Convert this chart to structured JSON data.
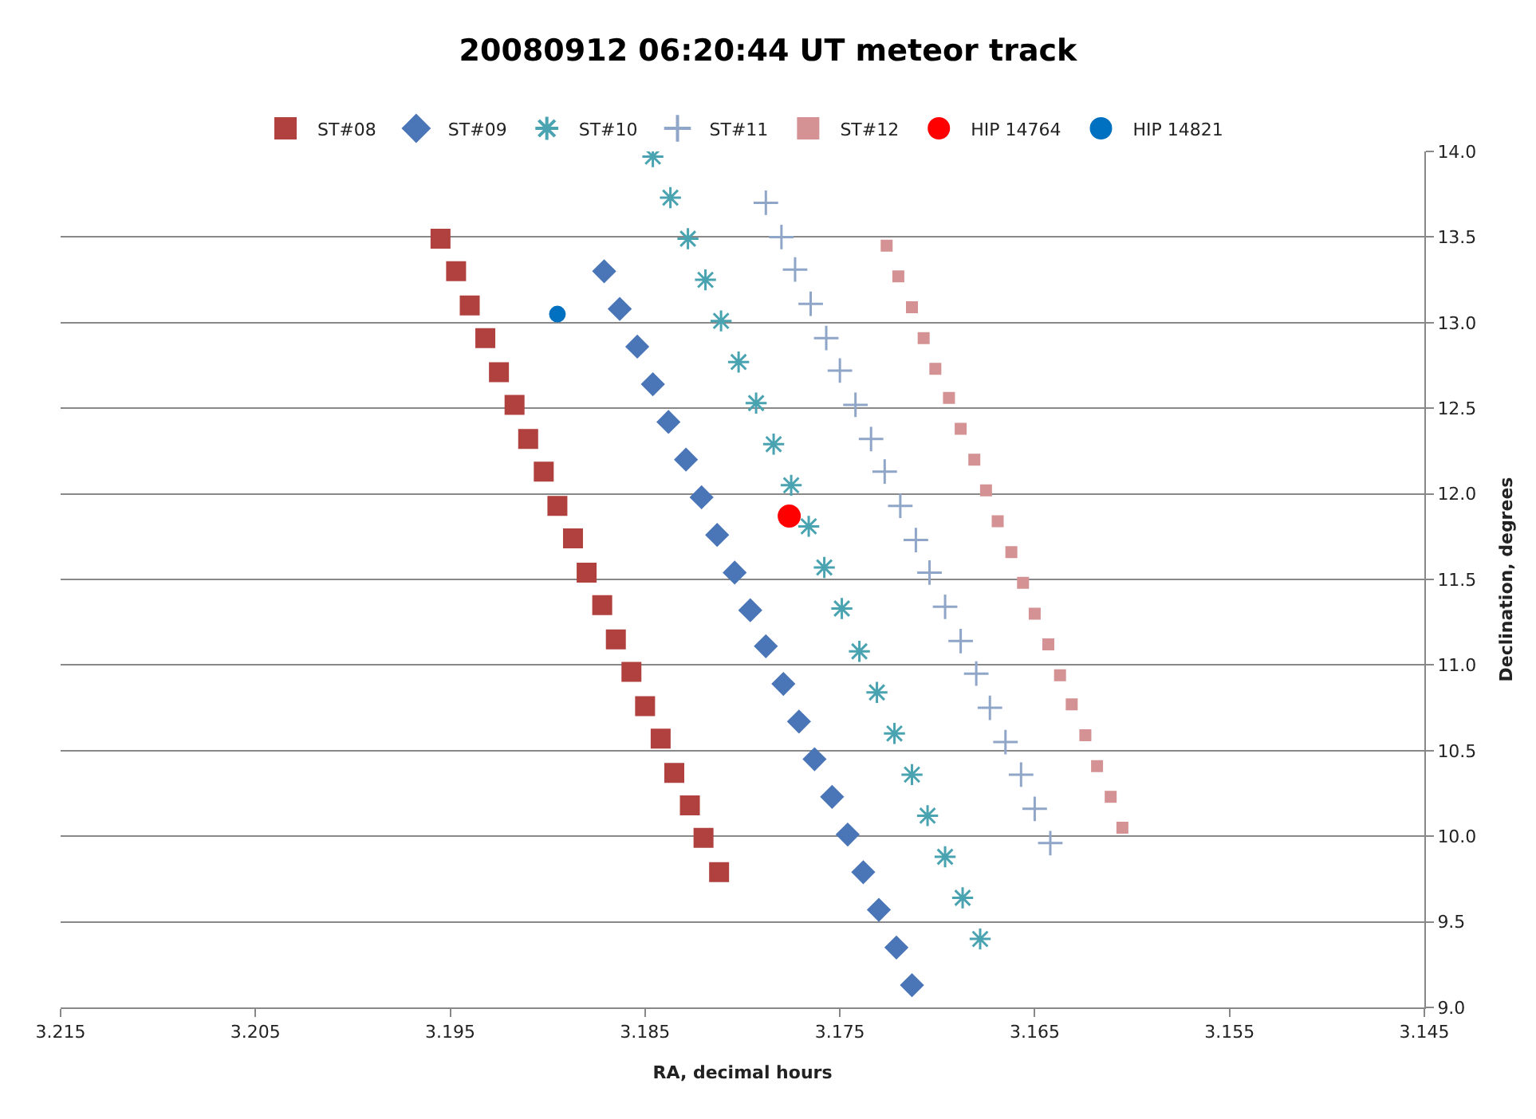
{
  "chart_data": {
    "type": "scatter",
    "title": "20080912 06:20:44 UT meteor track",
    "xlabel": "RA, decimal hours",
    "ylabel": "Declination, degrees",
    "xlim": [
      3.215,
      3.145
    ],
    "xticks": [
      3.215,
      3.205,
      3.195,
      3.185,
      3.175,
      3.165,
      3.155,
      3.145
    ],
    "ylim": [
      9,
      14
    ],
    "yticks": [
      {
        "value": 9,
        "label": "9.0"
      },
      {
        "value": 9.5,
        "label": "9.5"
      },
      {
        "value": 10,
        "label": "10.0"
      },
      {
        "value": 10.5,
        "label": "10.5"
      },
      {
        "value": 11,
        "label": "11.0"
      },
      {
        "value": 11.5,
        "label": "11.5"
      },
      {
        "value": 12,
        "label": "12.0"
      },
      {
        "value": 12.5,
        "label": "12.5"
      },
      {
        "value": 13,
        "label": "13.0"
      },
      {
        "value": 13.5,
        "label": "13.5"
      },
      {
        "value": 14,
        "label": "14.0"
      }
    ],
    "grid": "y",
    "legend": "top",
    "series": [
      {
        "name": "ST#08",
        "color": "#b0413e",
        "marker": "square",
        "x": [
          3.1955,
          3.1947,
          3.194,
          3.1932,
          3.1925,
          3.1917,
          3.191,
          3.1902,
          3.1895,
          3.1887,
          3.188,
          3.1872,
          3.1865,
          3.1857,
          3.185,
          3.1842,
          3.1835,
          3.1827,
          3.182,
          3.1812
        ],
        "values": [
          13.49,
          13.3,
          13.1,
          12.91,
          12.71,
          12.52,
          12.32,
          12.13,
          11.93,
          11.74,
          11.54,
          11.35,
          11.15,
          10.96,
          10.76,
          10.57,
          10.37,
          10.18,
          9.99,
          9.79
        ]
      },
      {
        "name": "ST#09",
        "color": "#4a76b8",
        "marker": "diamond",
        "x": [
          3.1871,
          3.1863,
          3.1854,
          3.1846,
          3.1838,
          3.1829,
          3.1821,
          3.1813,
          3.1804,
          3.1796,
          3.1788,
          3.1779,
          3.1771,
          3.1763,
          3.1754,
          3.1746,
          3.1738,
          3.173,
          3.1721,
          3.1713
        ],
        "values": [
          13.3,
          13.08,
          12.86,
          12.64,
          12.42,
          12.2,
          11.98,
          11.76,
          11.54,
          11.32,
          11.11,
          10.89,
          10.67,
          10.45,
          10.23,
          10.01,
          9.79,
          9.57,
          9.35,
          9.13
        ]
      },
      {
        "name": "ST#10",
        "color": "#4aa3b0",
        "marker": "cross",
        "x": [
          3.1846,
          3.1837,
          3.1828,
          3.1819,
          3.1811,
          3.1802,
          3.1793,
          3.1784,
          3.1775,
          3.1766,
          3.1758,
          3.1749,
          3.174,
          3.1731,
          3.1722,
          3.1713,
          3.1705,
          3.1696,
          3.1687,
          3.1678
        ],
        "values": [
          13.97,
          13.73,
          13.49,
          13.25,
          13.01,
          12.77,
          12.53,
          12.29,
          12.05,
          11.81,
          11.57,
          11.33,
          11.08,
          10.84,
          10.6,
          10.36,
          10.12,
          9.88,
          9.64,
          9.4
        ]
      },
      {
        "name": "ST#11",
        "color": "#8fa6c8",
        "marker": "cross",
        "x": [
          3.1788,
          3.178,
          3.1773,
          3.1765,
          3.1757,
          3.175,
          3.1742,
          3.1734,
          3.1727,
          3.1719,
          3.1711,
          3.1704,
          3.1696,
          3.1688,
          3.168,
          3.1673,
          3.1665,
          3.1657,
          3.165,
          3.1642
        ],
        "values": [
          13.7,
          13.5,
          13.31,
          13.11,
          12.91,
          12.72,
          12.52,
          12.32,
          12.13,
          11.93,
          11.73,
          11.54,
          11.34,
          11.14,
          10.95,
          10.75,
          10.55,
          10.36,
          10.16,
          9.96
        ]
      },
      {
        "name": "ST#12",
        "color": "#d49294",
        "marker": "square",
        "x": [
          3.1726,
          3.172,
          3.1713,
          3.1707,
          3.1701,
          3.1694,
          3.1688,
          3.1681,
          3.1675,
          3.1669,
          3.1662,
          3.1656,
          3.165,
          3.1643,
          3.1637,
          3.1631,
          3.1624,
          3.1618,
          3.1611,
          3.1605
        ],
        "values": [
          13.45,
          13.27,
          13.09,
          12.91,
          12.73,
          12.56,
          12.38,
          12.2,
          12.02,
          11.84,
          11.66,
          11.48,
          11.3,
          11.12,
          10.94,
          10.77,
          10.59,
          10.41,
          10.23,
          10.05
        ]
      },
      {
        "name": "HIP 14764",
        "color": "#ff0000",
        "marker": "circle",
        "x": [
          3.1776
        ],
        "values": [
          11.87
        ]
      },
      {
        "name": "HIP 14821",
        "color": "#0070c0",
        "marker": "circle",
        "x": [
          3.1895
        ],
        "values": [
          13.05
        ]
      }
    ]
  }
}
